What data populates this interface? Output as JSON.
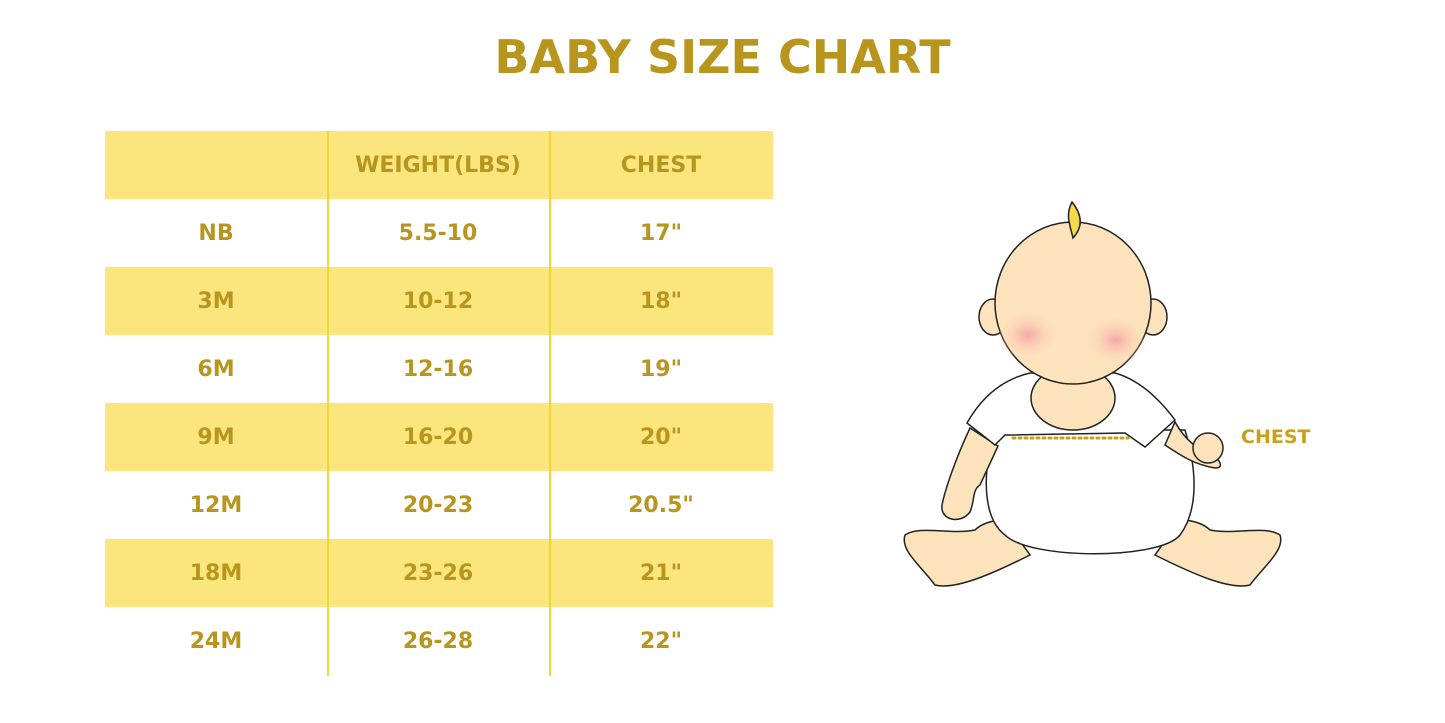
{
  "title": "BABY SIZE CHART",
  "table": {
    "headers": [
      "",
      "WEIGHT(LBS)",
      "CHEST"
    ],
    "rows": [
      [
        "NB",
        "5.5-10",
        "17\""
      ],
      [
        "3M",
        "10-12",
        "18\""
      ],
      [
        "6M",
        "12-16",
        "19\""
      ],
      [
        "9M",
        "16-20",
        "20\""
      ],
      [
        "12M",
        "20-23",
        "20.5\""
      ],
      [
        "18M",
        "23-26",
        "21\""
      ],
      [
        "24M",
        "26-28",
        "22\""
      ]
    ]
  },
  "illustration": {
    "chest_label": "CHEST"
  },
  "colors": {
    "text": "#b8961e",
    "band": "#fbe57d",
    "skin": "#fde3bc"
  }
}
